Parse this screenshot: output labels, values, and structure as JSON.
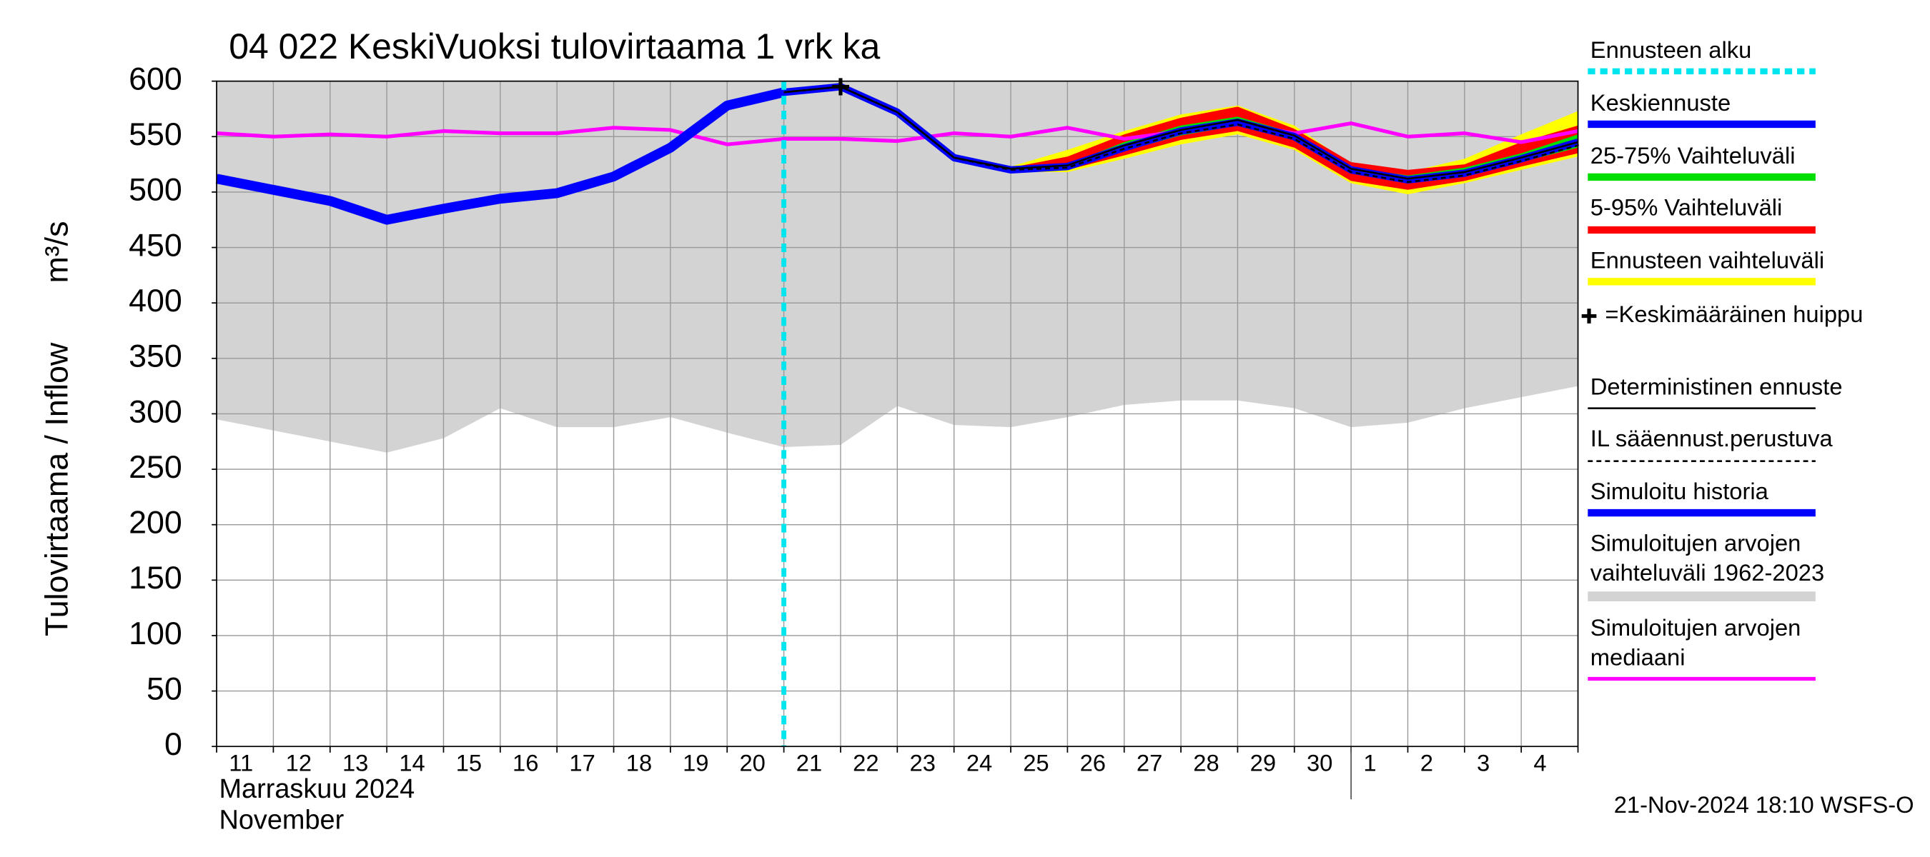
{
  "chart_data": {
    "type": "line",
    "title": "04 022 KeskiVuoksi tulovirtaama 1 vrk ka",
    "ylabel": "Tulovirtaama / Inflow",
    "yunit": "m³/s",
    "xlabel_fi": "Marraskuu 2024",
    "xlabel_en": "November",
    "timestamp": "21-Nov-2024 18:10 WSFS-O",
    "categories": [
      "11",
      "12",
      "13",
      "14",
      "15",
      "16",
      "17",
      "18",
      "19",
      "20",
      "21",
      "22",
      "23",
      "24",
      "25",
      "26",
      "27",
      "28",
      "29",
      "30",
      "1",
      "2",
      "3",
      "4",
      null
    ],
    "ylim": [
      0,
      600
    ],
    "yticks": [
      0,
      50,
      100,
      150,
      200,
      250,
      300,
      350,
      400,
      450,
      500,
      550,
      600
    ],
    "grid": true,
    "forecast_start": {
      "name": "Ennusteen alku",
      "category": "21",
      "color": "#00e5ee"
    },
    "peak": {
      "name": "=Keskimääräinen huippu",
      "category": "22",
      "value": 595
    },
    "series": [
      {
        "name": "Keskiennuste",
        "kind": "line",
        "color": "#0000ff",
        "values": [
          null,
          null,
          null,
          null,
          null,
          null,
          null,
          null,
          null,
          null,
          590,
          595,
          572,
          531,
          520,
          523,
          540,
          555,
          563,
          550,
          520,
          511,
          517,
          530,
          545
        ]
      },
      {
        "name": "25-75% Vaihteluväli",
        "kind": "band",
        "color": "#00dd00",
        "lower": [
          null,
          null,
          null,
          null,
          null,
          null,
          null,
          null,
          null,
          null,
          590,
          595,
          572,
          531,
          520,
          521,
          537,
          551,
          560,
          547,
          518,
          508,
          514,
          527,
          540
        ],
        "upper": [
          null,
          null,
          null,
          null,
          null,
          null,
          null,
          null,
          null,
          null,
          590,
          595,
          572,
          531,
          521,
          525,
          545,
          560,
          568,
          553,
          522,
          515,
          522,
          535,
          552
        ]
      },
      {
        "name": "5-95% Vaihteluväli",
        "kind": "band",
        "color": "#ff0000",
        "lower": [
          null,
          null,
          null,
          null,
          null,
          null,
          null,
          null,
          null,
          null,
          590,
          595,
          572,
          531,
          519,
          520,
          533,
          547,
          555,
          540,
          510,
          502,
          510,
          523,
          535
        ],
        "upper": [
          null,
          null,
          null,
          null,
          null,
          null,
          null,
          null,
          null,
          null,
          590,
          595,
          572,
          531,
          522,
          532,
          552,
          567,
          577,
          557,
          527,
          520,
          525,
          545,
          560
        ]
      },
      {
        "name": "Ennusteen vaihteluväli",
        "kind": "band",
        "color": "#ffff00",
        "lower": [
          null,
          null,
          null,
          null,
          null,
          null,
          null,
          null,
          null,
          null,
          590,
          595,
          572,
          531,
          518,
          518,
          530,
          543,
          552,
          538,
          508,
          498,
          508,
          520,
          532
        ],
        "upper": [
          null,
          null,
          null,
          null,
          null,
          null,
          null,
          null,
          null,
          null,
          590,
          595,
          572,
          531,
          523,
          538,
          555,
          570,
          578,
          560,
          525,
          518,
          530,
          552,
          573
        ]
      },
      {
        "name": "Deterministinen ennuste",
        "kind": "line",
        "color": "#000000",
        "values": [
          null,
          null,
          null,
          null,
          null,
          null,
          null,
          null,
          null,
          null,
          590,
          595,
          572,
          531,
          521,
          524,
          542,
          556,
          565,
          551,
          521,
          512,
          518,
          531,
          545
        ]
      },
      {
        "name": "IL sääennust.perustuva",
        "kind": "dashed",
        "color": "#000000",
        "values": [
          null,
          null,
          null,
          null,
          null,
          null,
          null,
          null,
          null,
          null,
          590,
          595,
          572,
          531,
          520,
          522,
          539,
          553,
          561,
          548,
          518,
          509,
          515,
          528,
          542
        ]
      },
      {
        "name": "Simuloitu historia",
        "kind": "line",
        "color": "#0000ff",
        "values": [
          512,
          502,
          492,
          475,
          485,
          494,
          499,
          514,
          540,
          578,
          590,
          null,
          null,
          null,
          null,
          null,
          null,
          null,
          null,
          null,
          null,
          null,
          null,
          null,
          null
        ]
      },
      {
        "name": "Simuloitujen arvojen vaihteluväli 1962-2023",
        "kind": "band",
        "color": "#d3d3d3",
        "lower": [
          295,
          285,
          275,
          265,
          278,
          305,
          288,
          288,
          297,
          283,
          270,
          272,
          307,
          290,
          288,
          297,
          308,
          312,
          312,
          305,
          288,
          292,
          305,
          315,
          325
        ],
        "upper": [
          600,
          600,
          600,
          600,
          600,
          600,
          600,
          600,
          600,
          600,
          600,
          600,
          600,
          600,
          600,
          600,
          600,
          600,
          600,
          600,
          600,
          600,
          600,
          600,
          600
        ]
      },
      {
        "name": "Simuloitujen arvojen mediaani",
        "kind": "line",
        "color": "#ff00ff",
        "values": [
          553,
          550,
          552,
          550,
          555,
          553,
          553,
          558,
          556,
          543,
          548,
          548,
          546,
          553,
          550,
          558,
          548,
          555,
          562,
          553,
          562,
          550,
          553,
          545,
          555
        ]
      }
    ]
  }
}
